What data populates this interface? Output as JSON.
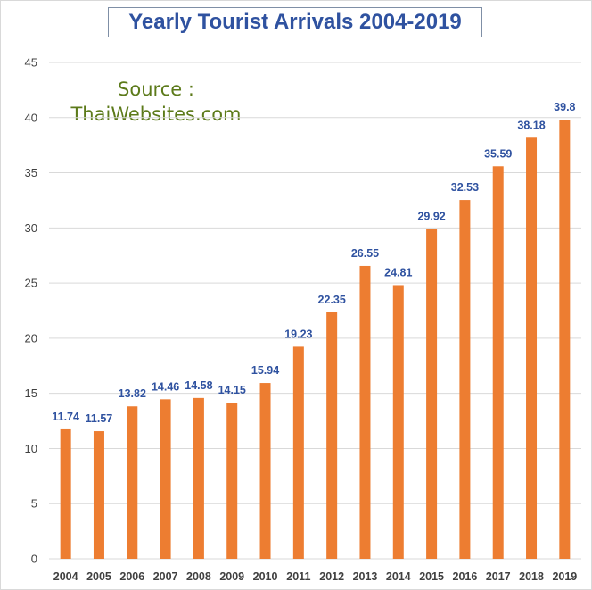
{
  "chart_data": {
    "type": "bar",
    "title": "Yearly Tourist Arrivals 2004-2019",
    "source_line1": "Source :",
    "source_line2": "ThaiWebsites.com",
    "categories": [
      "2004",
      "2005",
      "2006",
      "2007",
      "2008",
      "2009",
      "2010",
      "2011",
      "2012",
      "2013",
      "2014",
      "2015",
      "2016",
      "2017",
      "2018",
      "2019"
    ],
    "values": [
      11.74,
      11.57,
      13.82,
      14.46,
      14.58,
      14.15,
      15.94,
      19.23,
      22.35,
      26.55,
      24.81,
      29.92,
      32.53,
      35.59,
      38.18,
      39.8
    ],
    "data_labels": [
      "11.74",
      "11.57",
      "13.82",
      "14.46",
      "14.58",
      "14.15",
      "15.94",
      "19.23",
      "22.35",
      "26.55",
      "24.81",
      "29.92",
      "32.53",
      "35.59",
      "38.18",
      "39.8"
    ],
    "yticks": [
      0,
      5,
      10,
      15,
      20,
      25,
      30,
      35,
      40,
      45
    ],
    "ylim": [
      0,
      45
    ],
    "xlabel": "",
    "ylabel": "",
    "grid": true,
    "legend": "none",
    "colors": {
      "bar": "#ed7d31",
      "data_label": "#2f52a0",
      "title": "#2f52a0",
      "source": "#5c7a1a",
      "grid": "#d9d9d9"
    }
  }
}
